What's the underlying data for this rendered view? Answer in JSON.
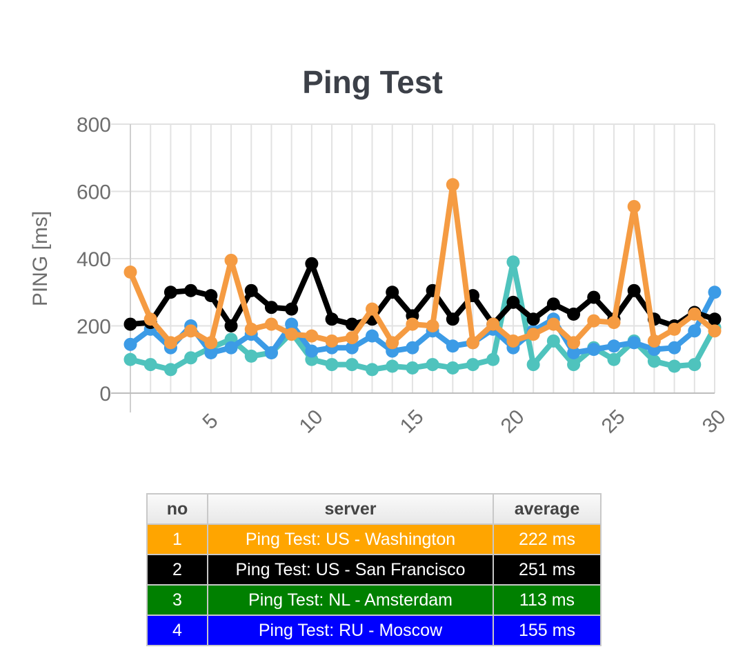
{
  "chart_data": {
    "type": "line",
    "title": "Ping Test",
    "xlabel": "",
    "ylabel": "PING [ms]",
    "ylim": [
      0,
      800
    ],
    "yticks": [
      0,
      200,
      400,
      600,
      800
    ],
    "xticks": [
      5,
      10,
      15,
      20,
      25,
      30
    ],
    "grid": true,
    "x": [
      1,
      2,
      3,
      4,
      5,
      6,
      7,
      8,
      9,
      10,
      11,
      12,
      13,
      14,
      15,
      16,
      17,
      18,
      19,
      20,
      21,
      22,
      23,
      24,
      25,
      26,
      27,
      28,
      29,
      30
    ],
    "series": [
      {
        "color": "#f59b42",
        "values": [
          360,
          220,
          150,
          185,
          150,
          395,
          190,
          205,
          175,
          170,
          155,
          165,
          250,
          150,
          205,
          200,
          620,
          150,
          205,
          155,
          175,
          205,
          150,
          215,
          210,
          555,
          155,
          190,
          235,
          185
        ]
      },
      {
        "color": "#000000",
        "values": [
          205,
          210,
          300,
          305,
          290,
          200,
          305,
          255,
          250,
          385,
          220,
          205,
          220,
          300,
          230,
          305,
          220,
          290,
          205,
          270,
          220,
          265,
          235,
          285,
          220,
          305,
          220,
          200,
          240,
          220
        ]
      },
      {
        "color": "#3c9be6",
        "values": [
          145,
          190,
          135,
          200,
          120,
          135,
          175,
          120,
          205,
          125,
          135,
          135,
          170,
          125,
          135,
          185,
          140,
          150,
          190,
          135,
          185,
          220,
          120,
          130,
          140,
          150,
          130,
          135,
          185,
          300
        ]
      },
      {
        "color": "#4fc3bd",
        "values": [
          100,
          85,
          70,
          105,
          135,
          160,
          110,
          120,
          180,
          100,
          85,
          85,
          70,
          80,
          75,
          85,
          75,
          85,
          100,
          390,
          85,
          155,
          85,
          135,
          100,
          155,
          95,
          80,
          85,
          195
        ]
      }
    ]
  },
  "table": {
    "headers": {
      "no": "no",
      "server": "server",
      "average": "average"
    },
    "rows": [
      {
        "no": "1",
        "server": "Ping Test: US - Washington",
        "average": "222 ms",
        "color": "#ffa500"
      },
      {
        "no": "2",
        "server": "Ping Test: US - San Francisco",
        "average": "251 ms",
        "color": "#000000"
      },
      {
        "no": "3",
        "server": "Ping Test: NL - Amsterdam",
        "average": "113 ms",
        "color": "#008000"
      },
      {
        "no": "4",
        "server": "Ping Test: RU - Moscow",
        "average": "155 ms",
        "color": "#0000ff"
      }
    ]
  }
}
